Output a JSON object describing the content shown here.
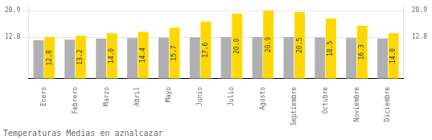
{
  "chart_data": {
    "type": "bar",
    "title": "Temperaturas Medias en aznalcazar",
    "categories": [
      "Enero",
      "Febrero",
      "Marzo",
      "Abril",
      "Mayo",
      "Junio",
      "Julio",
      "Agosto",
      "Septiembre",
      "Octubre",
      "Noviembre",
      "Diciembre"
    ],
    "series": [
      {
        "color": "#B0B0B0",
        "values": [
          11.8,
          12.0,
          12.3,
          12.5,
          12.6,
          12.7,
          12.8,
          12.8,
          12.8,
          12.7,
          12.5,
          12.3
        ]
      },
      {
        "color": "#FFD700",
        "values": [
          12.8,
          13.2,
          14.0,
          14.4,
          15.7,
          17.6,
          20.0,
          20.9,
          20.5,
          18.5,
          16.3,
          14.0
        ],
        "value_labels": [
          "12.8",
          "13.2",
          "14.0",
          "14.4",
          "15.7",
          "17.6",
          "20.0",
          "20.9",
          "20.5",
          "18.5",
          "16.3",
          "14.0"
        ],
        "data_labels": true
      }
    ],
    "ylim": [
      0,
      22.5
    ],
    "yticks": [
      12.8,
      20.9
    ],
    "y2lim": [
      0,
      22.5
    ],
    "y2ticks": [
      12.8,
      20.9
    ],
    "grid": true
  }
}
